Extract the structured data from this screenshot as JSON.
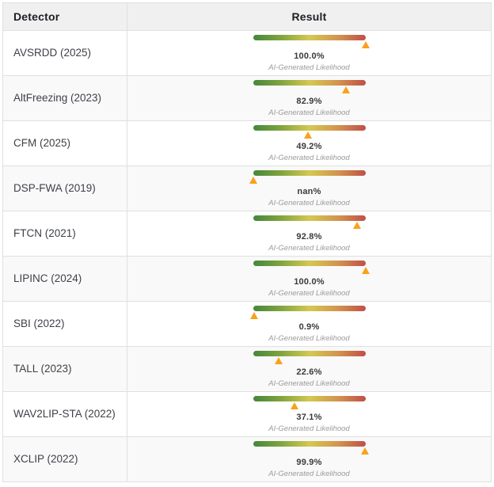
{
  "table": {
    "columns": [
      {
        "label": "Detector"
      },
      {
        "label": "Result"
      }
    ],
    "caption_under_each_gauge": "AI-Generated Likelihood",
    "rows": [
      {
        "detector": "AVSRDD (2025)",
        "value_label": "100.0%",
        "marker_percent": 100
      },
      {
        "detector": "AltFreezing (2023)",
        "value_label": "82.9%",
        "marker_percent": 82.9
      },
      {
        "detector": "CFM (2025)",
        "value_label": "49.2%",
        "marker_percent": 49.2
      },
      {
        "detector": "DSP-FWA (2019)",
        "value_label": "nan%",
        "marker_percent": 0
      },
      {
        "detector": "FTCN (2021)",
        "value_label": "92.8%",
        "marker_percent": 92.8
      },
      {
        "detector": "LIPINC (2024)",
        "value_label": "100.0%",
        "marker_percent": 100
      },
      {
        "detector": "SBI (2022)",
        "value_label": "0.9%",
        "marker_percent": 0.9
      },
      {
        "detector": "TALL (2023)",
        "value_label": "22.6%",
        "marker_percent": 22.6
      },
      {
        "detector": "WAV2LIP-STA (2022)",
        "value_label": "37.1%",
        "marker_percent": 37.1
      },
      {
        "detector": "XCLIP (2022)",
        "value_label": "99.9%",
        "marker_percent": 99.9
      }
    ]
  },
  "colors": {
    "header_bg": "#f0f0f1",
    "row_alt_bg": "#f9f9fa",
    "border": "#e0e0e0",
    "gauge_gradient": [
      "#44873c",
      "#7fa33e",
      "#d3c951",
      "#d3924f",
      "#bf4f47"
    ],
    "marker_orange": "#f9a11c",
    "value_text": "#3a3a3a",
    "caption_text": "#9b9b9b",
    "header_text": "#1c1f24"
  },
  "chart_data": {
    "type": "table",
    "columns": [
      "Detector",
      "Result"
    ],
    "gauge": {
      "min": 0,
      "max": 100,
      "unit": "%",
      "label": "AI-Generated Likelihood",
      "style": "green-to-red gradient bar with orange triangle marker below"
    },
    "rows": [
      {
        "detector": "AVSRDD (2025)",
        "ai_generated_likelihood_pct": 100.0
      },
      {
        "detector": "AltFreezing (2023)",
        "ai_generated_likelihood_pct": 82.9
      },
      {
        "detector": "CFM (2025)",
        "ai_generated_likelihood_pct": 49.2
      },
      {
        "detector": "DSP-FWA (2019)",
        "ai_generated_likelihood_pct": "nan"
      },
      {
        "detector": "FTCN (2021)",
        "ai_generated_likelihood_pct": 92.8
      },
      {
        "detector": "LIPINC (2024)",
        "ai_generated_likelihood_pct": 100.0
      },
      {
        "detector": "SBI (2022)",
        "ai_generated_likelihood_pct": 0.9
      },
      {
        "detector": "TALL (2023)",
        "ai_generated_likelihood_pct": 22.6
      },
      {
        "detector": "WAV2LIP-STA (2022)",
        "ai_generated_likelihood_pct": 37.1
      },
      {
        "detector": "XCLIP (2022)",
        "ai_generated_likelihood_pct": 99.9
      }
    ]
  }
}
